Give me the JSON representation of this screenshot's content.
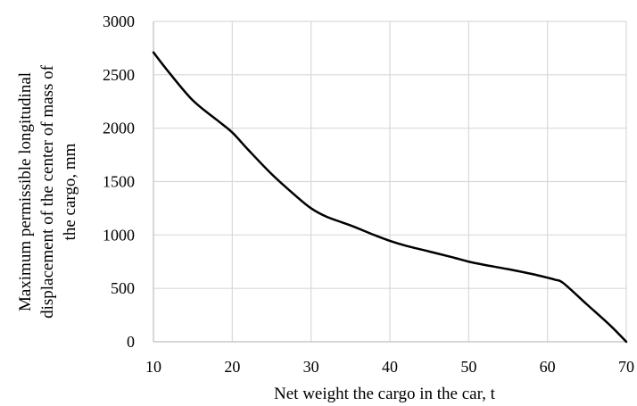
{
  "chart_data": {
    "type": "line",
    "title": "",
    "xlabel": "Net weight  the cargo  in the car, t",
    "ylabel_lines": [
      "Maximum permissible  longitudinal",
      "displacement  of the center of mass of",
      "the cargo,  mm"
    ],
    "xlim": [
      10,
      70
    ],
    "ylim": [
      0,
      3000
    ],
    "xticks": [
      10,
      20,
      30,
      40,
      50,
      60,
      70
    ],
    "yticks": [
      0,
      500,
      1000,
      1500,
      2000,
      2500,
      3000
    ],
    "grid": true,
    "series": [
      {
        "x": [
          10,
          12,
          15,
          18,
          20,
          22,
          25,
          28,
          30,
          32,
          35,
          38,
          40,
          42,
          45,
          48,
          50,
          52,
          55,
          58,
          60,
          61,
          62,
          65,
          68,
          70
        ],
        "y": [
          2710,
          2520,
          2260,
          2080,
          1960,
          1800,
          1570,
          1370,
          1250,
          1170,
          1090,
          1000,
          945,
          900,
          845,
          790,
          750,
          720,
          680,
          635,
          600,
          580,
          550,
          350,
          150,
          0
        ]
      }
    ]
  }
}
